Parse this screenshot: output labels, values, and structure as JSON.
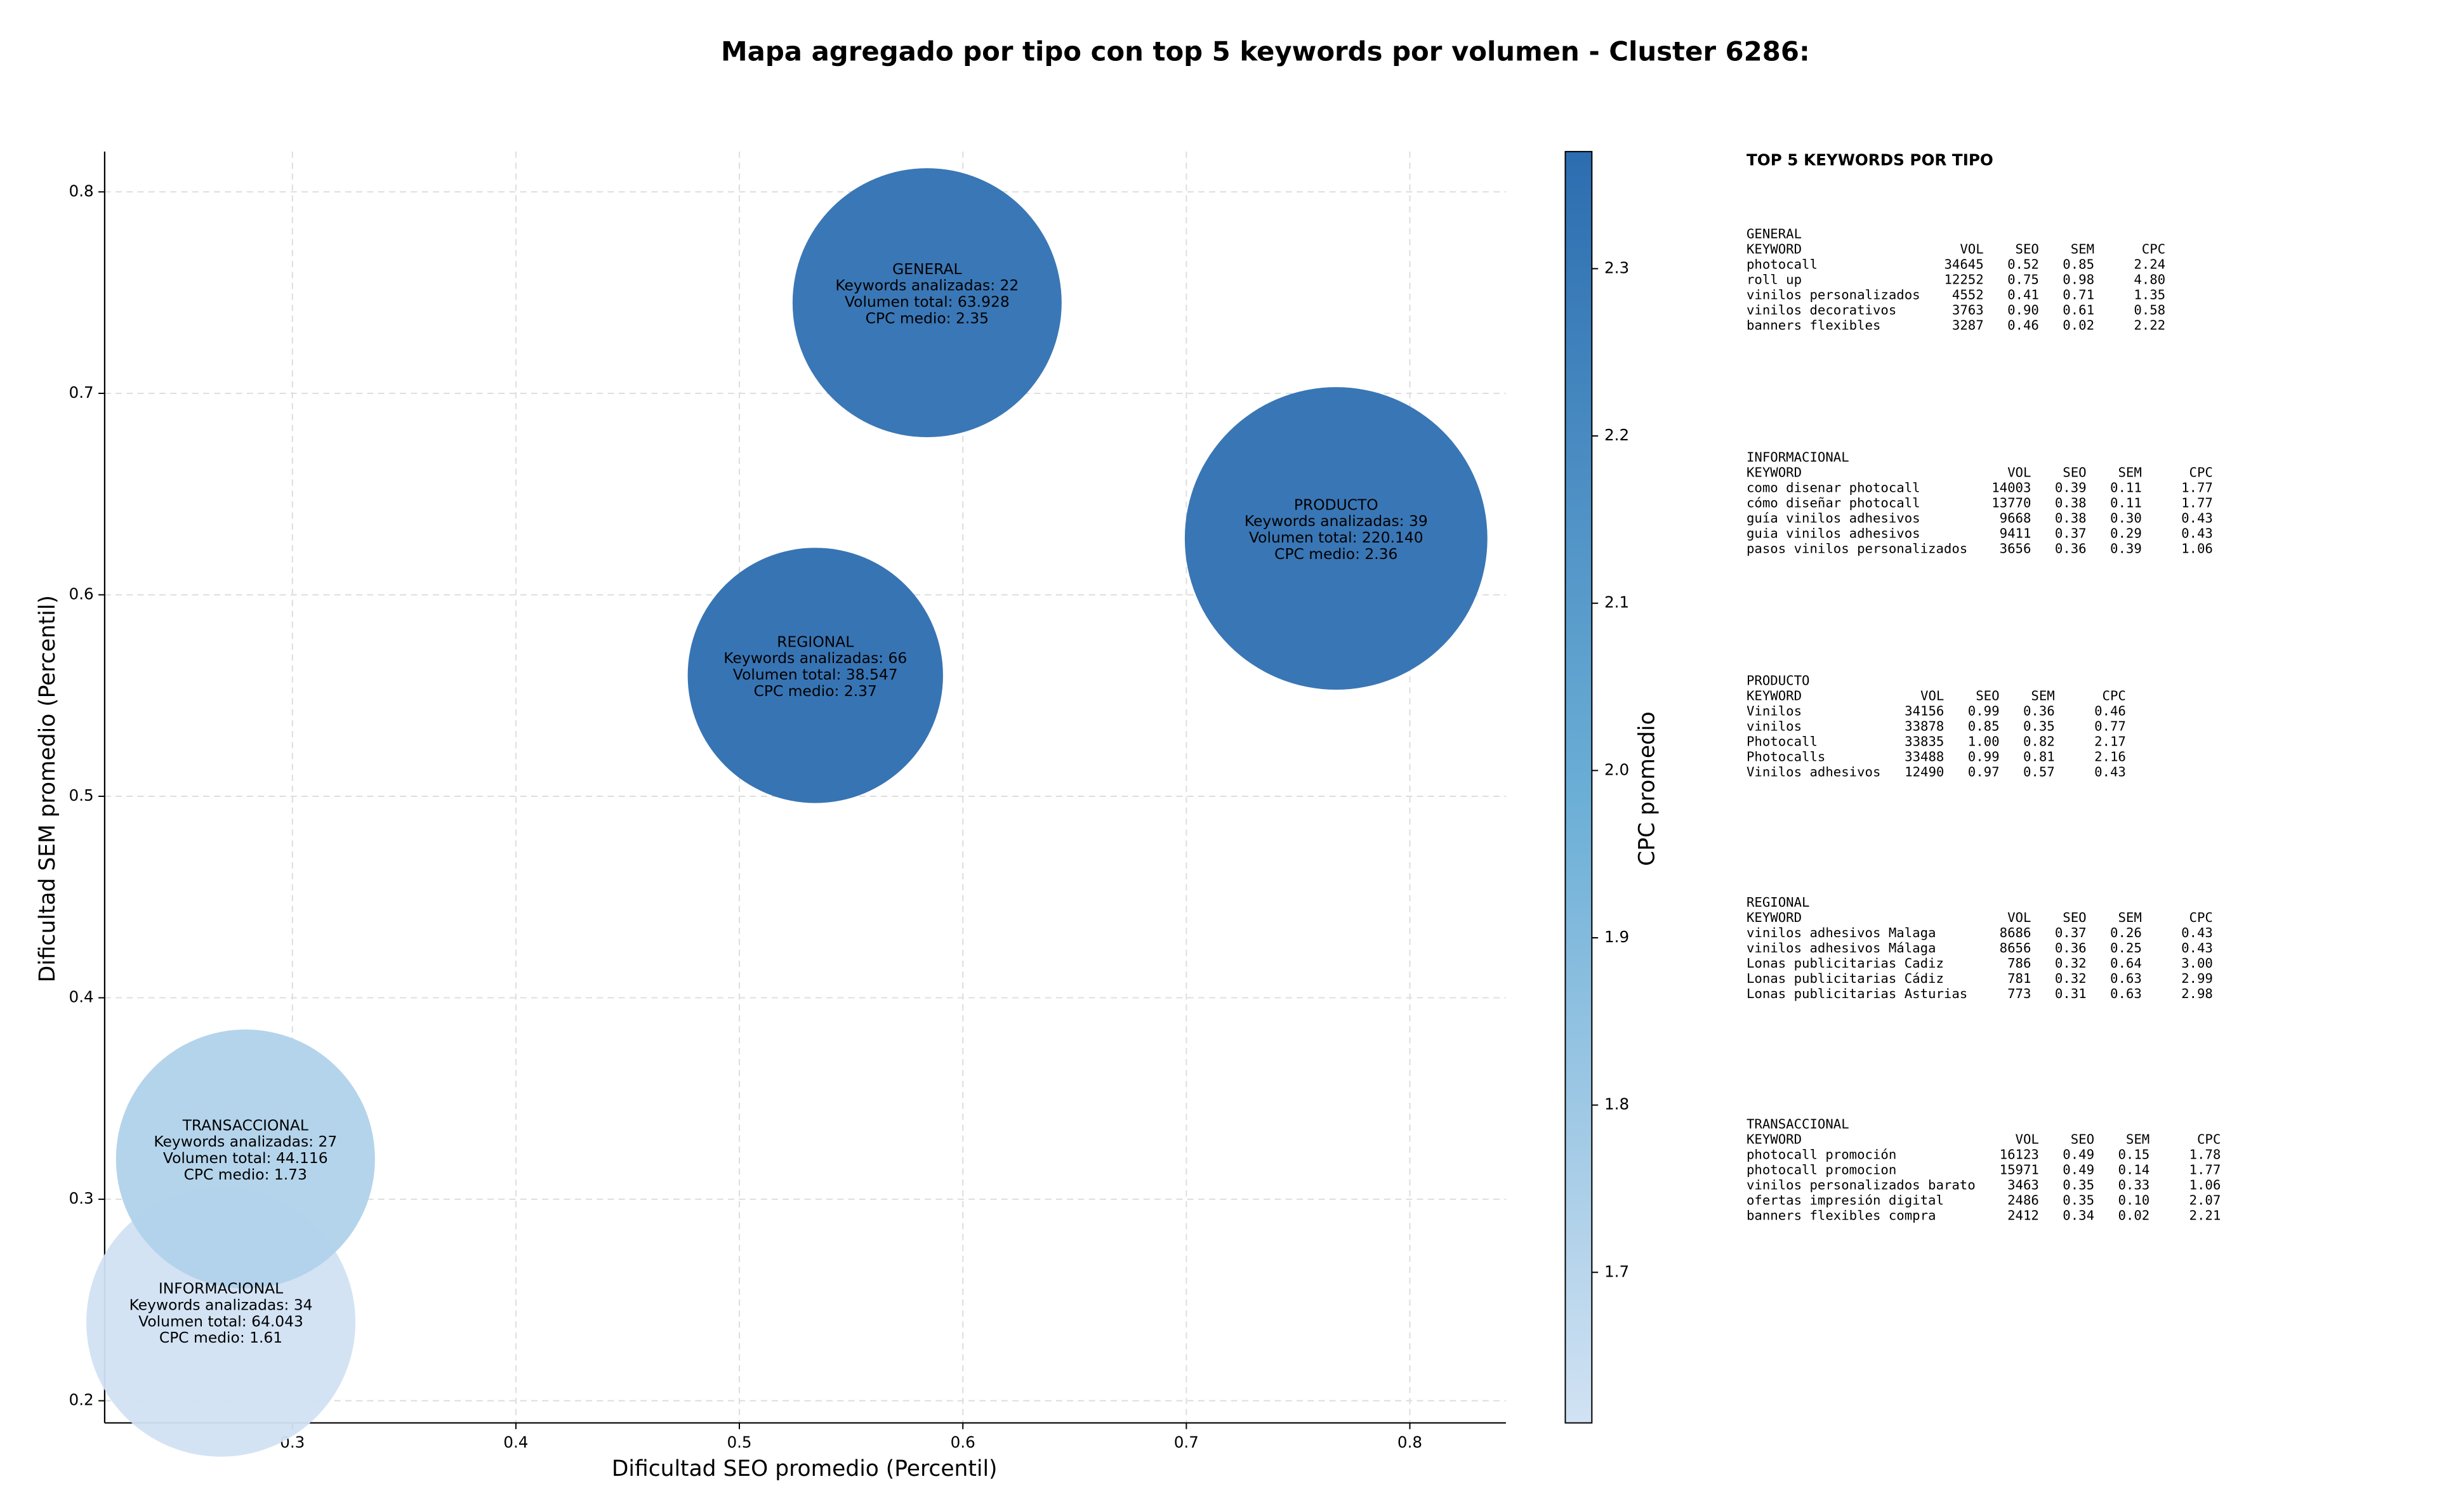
{
  "chart_data": {
    "type": "bubble",
    "title": "Mapa agregado por tipo con top 5 keywords por volumen - Cluster 6286:",
    "xlabel": "Dificultad SEO promedio (Percentil)",
    "ylabel": "Dificultad SEM promedio (Percentil)",
    "xlim": [
      0.216,
      0.843
    ],
    "ylim": [
      0.189,
      0.82
    ],
    "xticks": [
      0.3,
      0.4,
      0.5,
      0.6,
      0.7,
      0.8
    ],
    "yticks": [
      0.2,
      0.3,
      0.4,
      0.5,
      0.6,
      0.7,
      0.8
    ],
    "grid": true,
    "names": [
      "GENERAL",
      "INFORMACIONAL",
      "PRODUCTO",
      "REGIONAL",
      "TRANSACCIONAL"
    ],
    "x": [
      0.584,
      0.268,
      0.767,
      0.534,
      0.279
    ],
    "y": [
      0.745,
      0.239,
      0.628,
      0.56,
      0.32
    ],
    "sizes": [
      63928,
      64043,
      220140,
      38547,
      44116
    ],
    "cpc": [
      2.35,
      1.61,
      2.36,
      2.37,
      1.73
    ],
    "labels": [
      [
        "Keywords analizadas: 22",
        "Volumen total: 63.928",
        "CPC medio: 2.35"
      ],
      [
        "Keywords analizadas: 34",
        "Volumen total: 64.043",
        "CPC medio: 1.61"
      ],
      [
        "Keywords analizadas: 39",
        "Volumen total: 220.140",
        "CPC medio: 2.36"
      ],
      [
        "Keywords analizadas: 66",
        "Volumen total: 38.547",
        "CPC medio: 2.37"
      ],
      [
        "Keywords analizadas: 27",
        "Volumen total: 44.116",
        "CPC medio: 1.73"
      ]
    ],
    "colorbar": {
      "label": "CPC promedio",
      "lim": [
        1.61,
        2.37
      ],
      "ticks": [
        1.7,
        1.8,
        1.9,
        {
          "value": 2,
          "label": "2.0"
        },
        2.1,
        2.2,
        2.3
      ],
      "colormap": [
        "#d1e2f3",
        "#6aaed6",
        "#2c6db0"
      ]
    },
    "tables_title": "TOP 5 KEYWORDS POR TIPO",
    "tables": [
      {
        "title": "GENERAL",
        "columns": [
          "KEYWORD",
          "VOL",
          "SEO",
          "SEM",
          "CPC"
        ],
        "rows": [
          [
            "photocall",
            "34645",
            "0.52",
            "0.85",
            "2.24"
          ],
          [
            "roll up",
            "12252",
            "0.75",
            "0.98",
            "4.80"
          ],
          [
            "vinilos personalizados",
            "4552",
            "0.41",
            "0.71",
            "1.35"
          ],
          [
            "vinilos decorativos",
            "3763",
            "0.90",
            "0.61",
            "0.58"
          ],
          [
            "banners flexibles",
            "3287",
            "0.46",
            "0.02",
            "2.22"
          ]
        ]
      },
      {
        "title": "INFORMACIONAL",
        "columns": [
          "KEYWORD",
          "VOL",
          "SEO",
          "SEM",
          "CPC"
        ],
        "rows": [
          [
            "como disenar photocall",
            "14003",
            "0.39",
            "0.11",
            "1.77"
          ],
          [
            "cómo diseñar photocall",
            "13770",
            "0.38",
            "0.11",
            "1.77"
          ],
          [
            "guía vinilos adhesivos",
            "9668",
            "0.38",
            "0.30",
            "0.43"
          ],
          [
            "guia vinilos adhesivos",
            "9411",
            "0.37",
            "0.29",
            "0.43"
          ],
          [
            "pasos vinilos personalizados",
            "3656",
            "0.36",
            "0.39",
            "1.06"
          ]
        ]
      },
      {
        "title": "PRODUCTO",
        "columns": [
          "KEYWORD",
          "VOL",
          "SEO",
          "SEM",
          "CPC"
        ],
        "rows": [
          [
            "Vinilos",
            "34156",
            "0.99",
            "0.36",
            "0.46"
          ],
          [
            "vinilos",
            "33878",
            "0.85",
            "0.35",
            "0.77"
          ],
          [
            "Photocall",
            "33835",
            "1.00",
            "0.82",
            "2.17"
          ],
          [
            "Photocalls",
            "33488",
            "0.99",
            "0.81",
            "2.16"
          ],
          [
            "Vinilos adhesivos",
            "12490",
            "0.97",
            "0.57",
            "0.43"
          ]
        ]
      },
      {
        "title": "REGIONAL",
        "columns": [
          "KEYWORD",
          "VOL",
          "SEO",
          "SEM",
          "CPC"
        ],
        "rows": [
          [
            "vinilos adhesivos Malaga",
            "8686",
            "0.37",
            "0.26",
            "0.43"
          ],
          [
            "vinilos adhesivos Málaga",
            "8656",
            "0.36",
            "0.25",
            "0.43"
          ],
          [
            "Lonas publicitarias Cadiz",
            "786",
            "0.32",
            "0.64",
            "3.00"
          ],
          [
            "Lonas publicitarias Cádiz",
            "781",
            "0.32",
            "0.63",
            "2.99"
          ],
          [
            "Lonas publicitarias Asturias",
            "773",
            "0.31",
            "0.63",
            "2.98"
          ]
        ]
      },
      {
        "title": "TRANSACCIONAL",
        "columns": [
          "KEYWORD",
          "VOL",
          "SEO",
          "SEM",
          "CPC"
        ],
        "rows": [
          [
            "photocall promoción",
            "16123",
            "0.49",
            "0.15",
            "1.78"
          ],
          [
            "photocall promocion",
            "15971",
            "0.49",
            "0.14",
            "1.77"
          ],
          [
            "vinilos personalizados barato",
            "3463",
            "0.35",
            "0.33",
            "1.06"
          ],
          [
            "ofertas impresión digital",
            "2486",
            "0.35",
            "0.10",
            "2.07"
          ],
          [
            "banners flexibles compra",
            "2412",
            "0.34",
            "0.02",
            "2.21"
          ]
        ]
      }
    ]
  }
}
